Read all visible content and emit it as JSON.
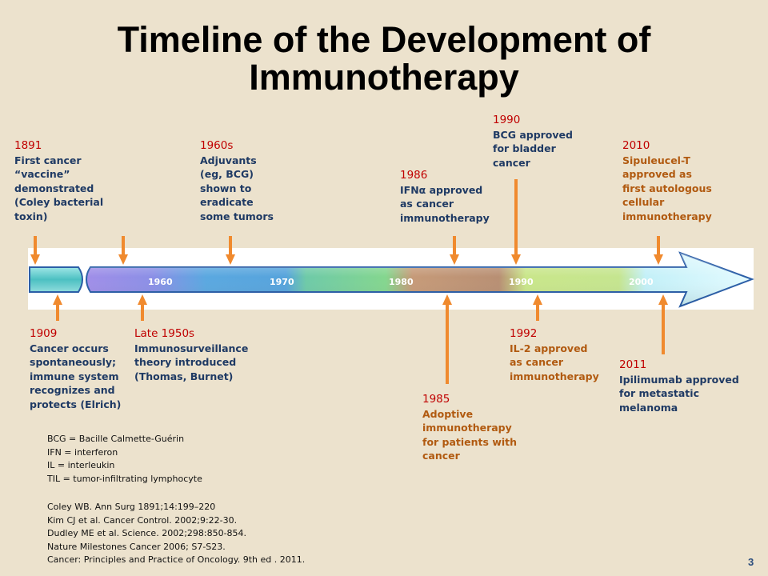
{
  "title": {
    "line1": "Timeline of the Development of",
    "line2": "Immunotherapy"
  },
  "axis": {
    "decades": [
      "1960",
      "1970",
      "1980",
      "1990",
      "2000"
    ],
    "colors": {
      "early": "#55c7c7",
      "purple": "#9a8ce8",
      "blue": "#5aa8e0",
      "green": "#7fd69a",
      "brown": "#c29277",
      "lime": "#c7e48a",
      "cyan": "#bff2fb",
      "outline": "#2b5ea7",
      "arrow": "#f08a2e"
    }
  },
  "events_top": [
    {
      "year": "1891",
      "lines": [
        "First cancer",
        "“vaccine”",
        "demonstrated",
        "(Coley bacterial",
        "toxin)"
      ]
    },
    {
      "year": "1960s",
      "lines": [
        "Adjuvants",
        "(eg, BCG)",
        "shown to",
        "eradicate",
        "some tumors"
      ]
    },
    {
      "year": "1986",
      "lines": [
        "IFNα approved",
        "as cancer",
        "immunotherapy"
      ]
    },
    {
      "year": "1990",
      "lines": [
        "BCG approved",
        "for bladder",
        "cancer"
      ]
    },
    {
      "year": "2010",
      "lines": [
        "Sipuleucel-T",
        "approved as",
        "first autologous",
        "cellular",
        "immunotherapy"
      ]
    }
  ],
  "events_bottom": [
    {
      "year": "1909",
      "lines": [
        "Cancer occurs",
        "spontaneously;",
        "immune system",
        "recognizes and",
        "protects (Elrich)"
      ]
    },
    {
      "year": "Late 1950s",
      "lines": [
        "Immunosurveillance",
        "theory introduced",
        "(Thomas, Burnet)"
      ]
    },
    {
      "year": "1985",
      "lines": [
        "Adoptive",
        "immunotherapy",
        "for patients with",
        "cancer"
      ]
    },
    {
      "year": "1992",
      "lines": [
        "IL-2 approved",
        "as cancer",
        "immunotherapy"
      ]
    },
    {
      "year": "2011",
      "lines": [
        "Ipilimumab approved",
        "for metastatic",
        "melanoma"
      ]
    }
  ],
  "abbreviations": [
    "BCG = Bacille Calmette-Guérin",
    "IFN = interferon",
    "IL = interleukin",
    "TIL = tumor-infiltrating lymphocyte"
  ],
  "references": [
    "Coley WB. Ann Surg  1891;14:199–220",
    "Kim CJ et al.  Cancer Control. 2002;9:22-30.",
    "Dudley ME et al.  Science. 2002;298:850-854.",
    "Nature Milestones Cancer 2006; S7-S23.",
    "Cancer: Principles and Practice of Oncology. 9th ed . 2011."
  ],
  "page_number": "3"
}
